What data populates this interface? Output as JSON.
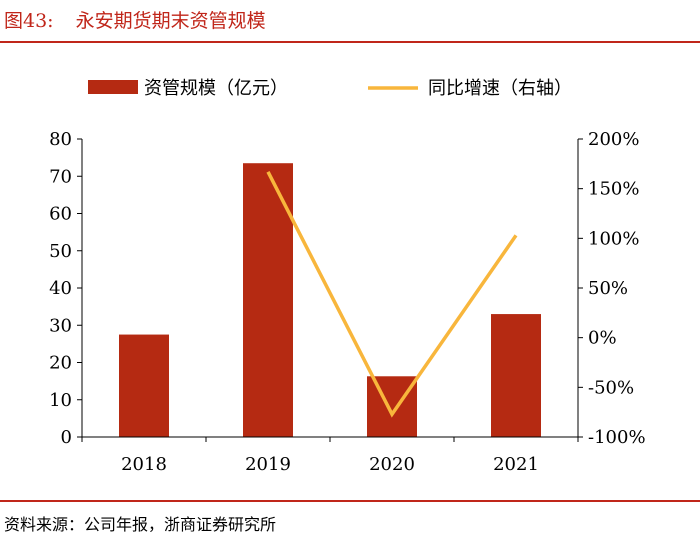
{
  "figure": {
    "label": "图43:",
    "title": "永安期货期末资管规模",
    "source": "资料来源：公司年报，浙商证券研究所"
  },
  "colors": {
    "bar": "#b52a12",
    "line": "#f8b63c",
    "accent": "#c0261a"
  },
  "chart_data": {
    "type": "bar",
    "categories": [
      "2018",
      "2019",
      "2020",
      "2021"
    ],
    "series": [
      {
        "name": "资管规模（亿元）",
        "type": "bar",
        "axis": "left",
        "values": [
          27.5,
          73.5,
          16.3,
          33.0
        ]
      },
      {
        "name": "同比增速（右轴）",
        "type": "line",
        "axis": "right",
        "values": [
          null,
          167,
          -77,
          103
        ]
      }
    ],
    "ylim": [
      0,
      80
    ],
    "y_ticks": [
      "0",
      "10",
      "20",
      "30",
      "40",
      "50",
      "60",
      "70",
      "80"
    ],
    "y2lim": [
      -100,
      200
    ],
    "y2_ticks": [
      "-100%",
      "-50%",
      "0%",
      "50%",
      "100%",
      "150%",
      "200%"
    ],
    "legend": "top",
    "grid": false
  }
}
